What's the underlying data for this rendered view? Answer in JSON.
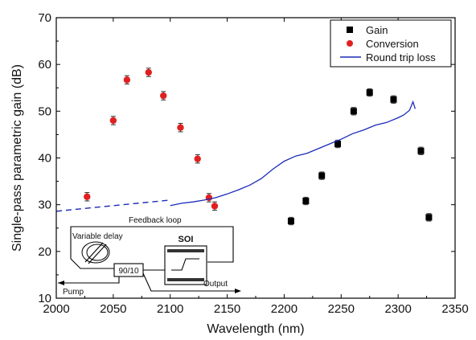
{
  "chart_data": {
    "type": "scatter",
    "xlabel": "Wavelength (nm)",
    "ylabel": "Single-pass parametric gain (dB)",
    "xlim": [
      2000,
      2350
    ],
    "ylim": [
      10,
      70
    ],
    "xticks": [
      2000,
      2050,
      2100,
      2150,
      2200,
      2250,
      2300,
      2350
    ],
    "yticks": [
      10,
      20,
      30,
      40,
      50,
      60,
      70
    ],
    "grid": false,
    "legend_position": "top-right",
    "series": [
      {
        "name": "Gain",
        "marker": "square",
        "color": "#000000",
        "x": [
          2206,
          2219,
          2233,
          2247,
          2261,
          2275,
          2296,
          2320,
          2327
        ],
        "y": [
          26.5,
          30.8,
          36.2,
          43.0,
          50.0,
          54.0,
          52.5,
          41.5,
          27.3
        ],
        "err": [
          0.8,
          0.8,
          0.8,
          0.8,
          0.8,
          0.8,
          0.8,
          0.8,
          0.8
        ]
      },
      {
        "name": "Conversion",
        "marker": "circle",
        "color": "#e02020",
        "x": [
          2027,
          2050,
          2062,
          2081,
          2094,
          2109,
          2124,
          2134,
          2139
        ],
        "y": [
          31.7,
          48.0,
          56.7,
          58.3,
          53.3,
          46.5,
          39.8,
          31.5,
          29.7
        ],
        "err": [
          0.9,
          0.9,
          0.9,
          0.9,
          0.9,
          0.9,
          0.9,
          0.9,
          0.9
        ]
      },
      {
        "name": "Round trip loss",
        "line": "solid",
        "color": "#1a2bb8",
        "x": [
          2100,
          2110,
          2120,
          2130,
          2140,
          2150,
          2160,
          2170,
          2180,
          2190,
          2200,
          2210,
          2220,
          2230,
          2240,
          2250,
          2260,
          2270,
          2280,
          2290,
          2300,
          2305,
          2310,
          2313,
          2315
        ],
        "y": [
          29.8,
          30.3,
          30.6,
          31.0,
          31.5,
          32.3,
          33.2,
          34.2,
          35.6,
          37.6,
          39.3,
          40.4,
          41.0,
          42.0,
          43.0,
          44.0,
          45.2,
          46.0,
          47.0,
          47.6,
          48.6,
          49.2,
          50.2,
          52.0,
          50.5
        ]
      },
      {
        "name": "Round trip loss extrapolation",
        "line": "dashed",
        "color": "#1a2bb8",
        "x": [
          2000,
          2100
        ],
        "y": [
          28.6,
          31.0
        ]
      }
    ],
    "inset": {
      "feedback_label": "Feedback loop",
      "delay_label": "Variable delay",
      "chip_label": "SOI",
      "splitter_label": "90/10",
      "pump_label": "Pump",
      "output_label": "Output"
    }
  }
}
